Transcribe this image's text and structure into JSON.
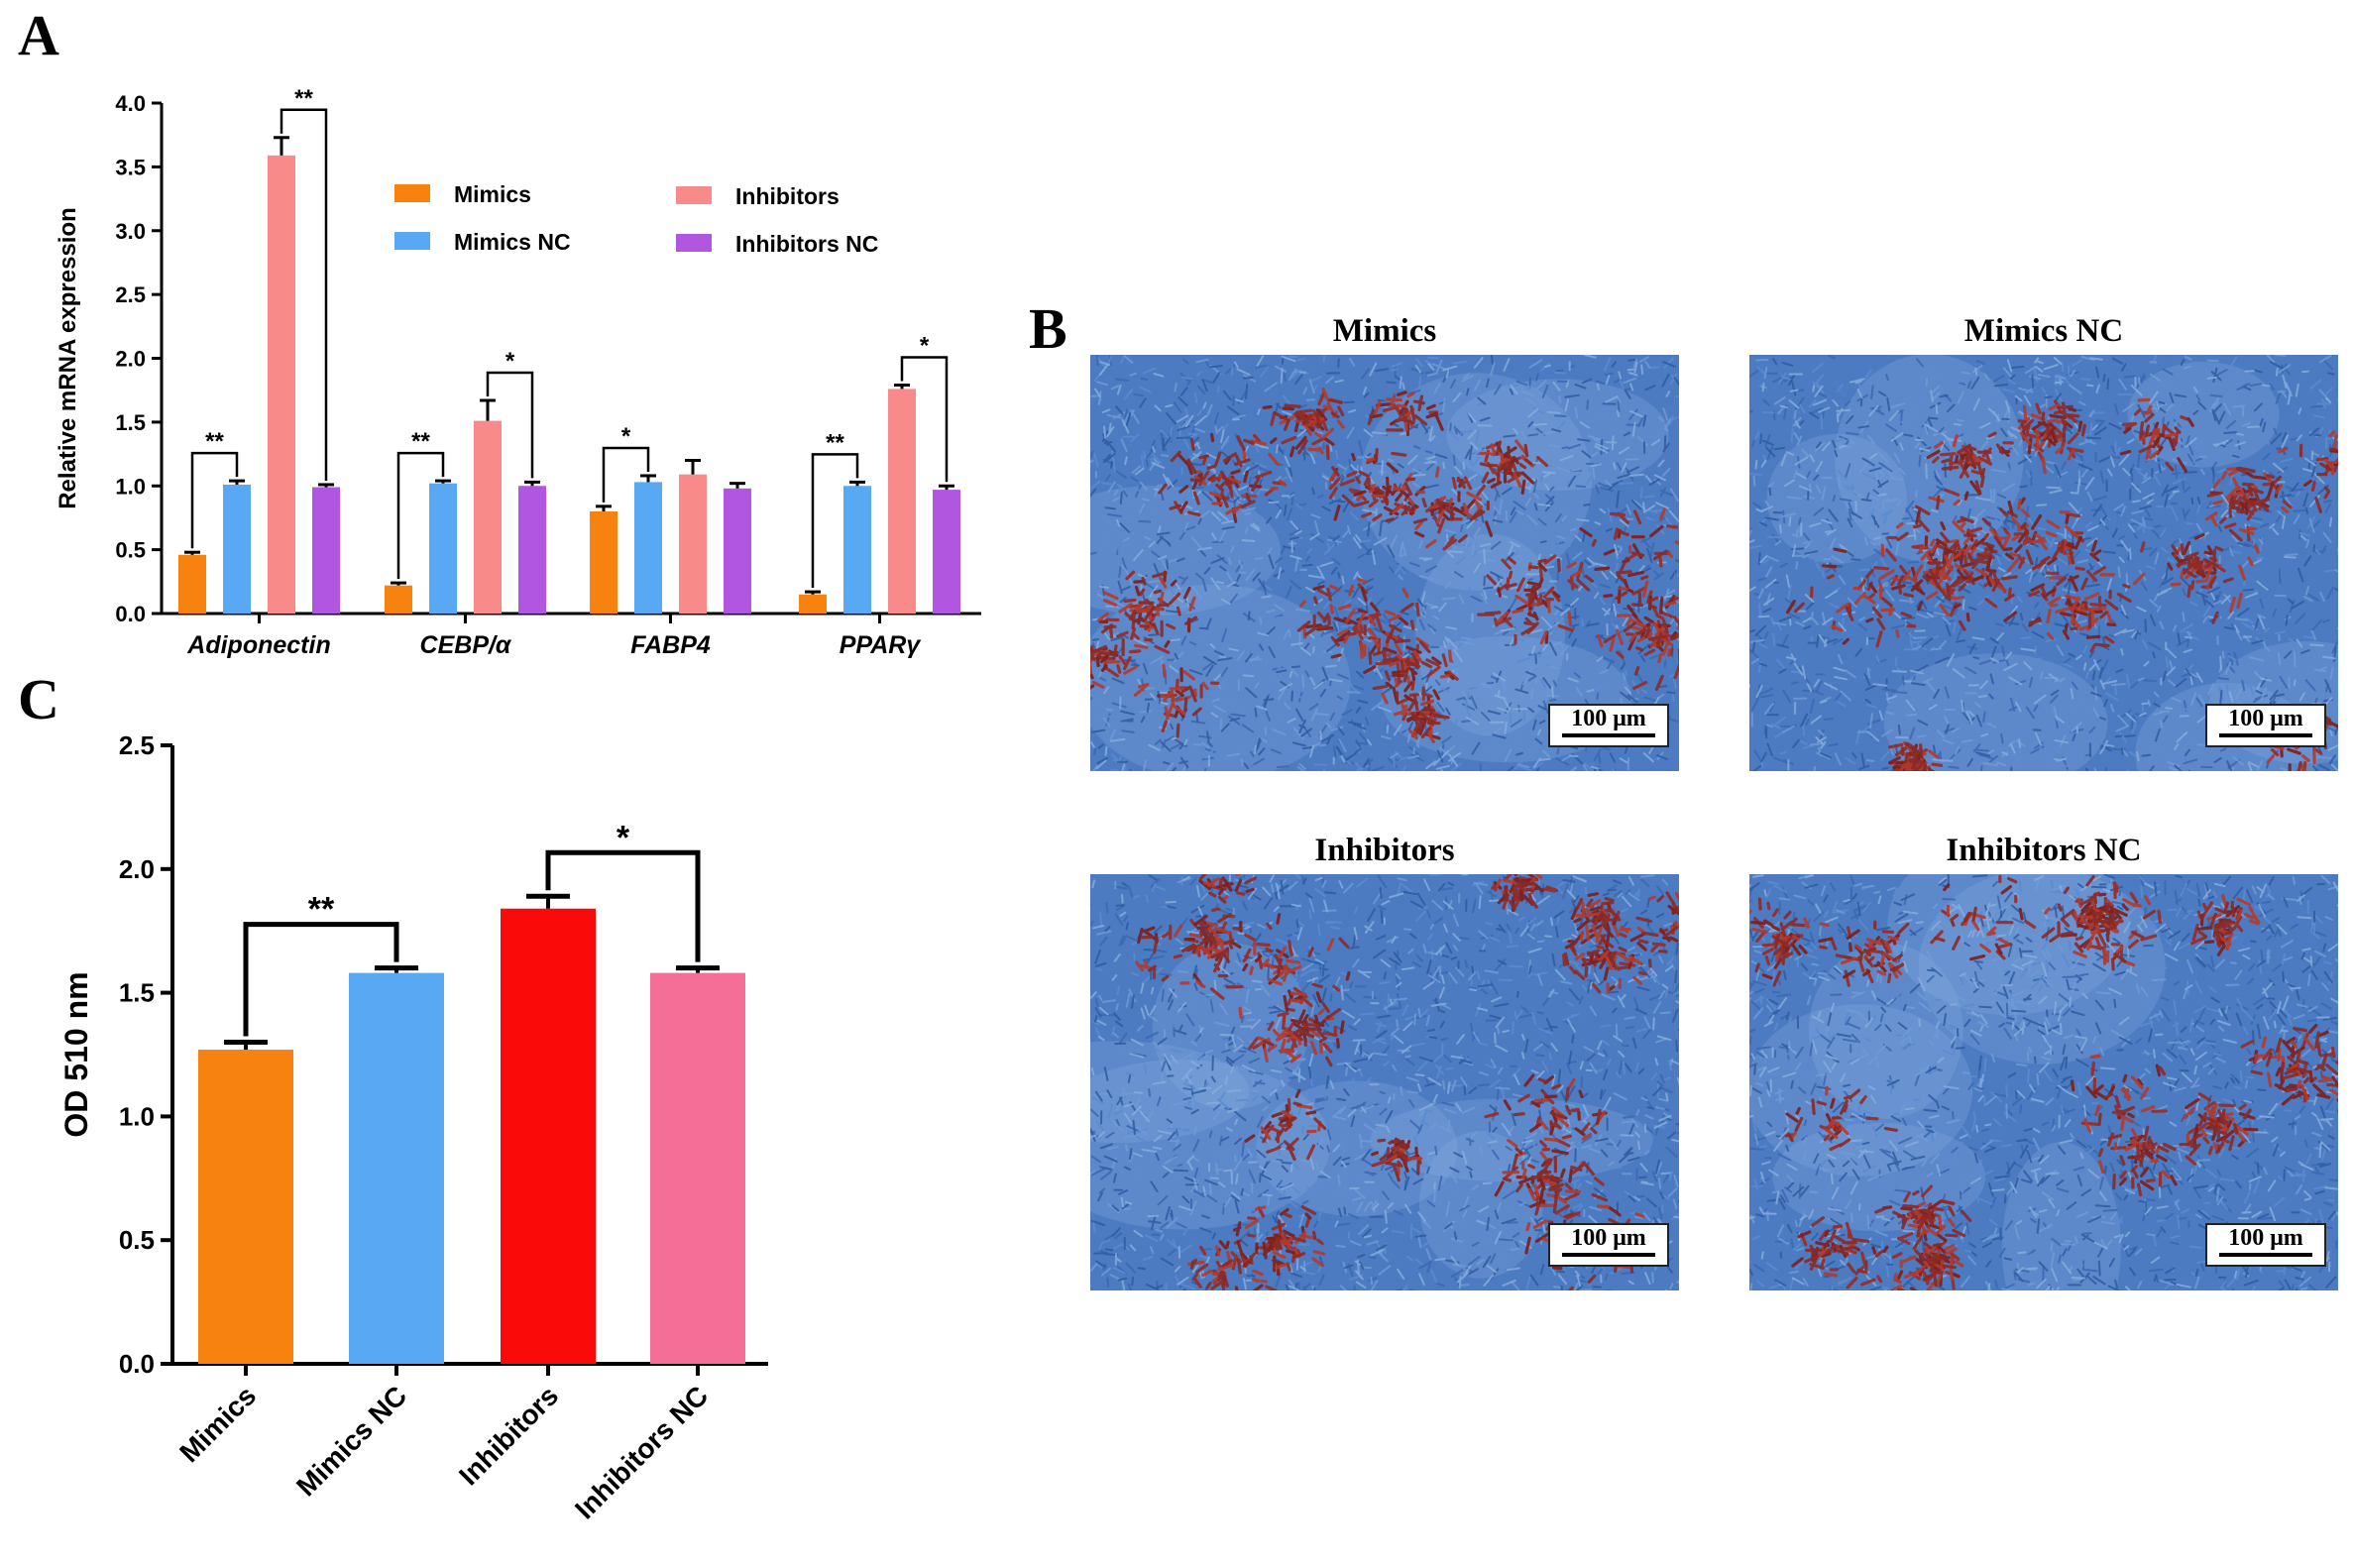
{
  "panels": {
    "A": "A",
    "B": "B",
    "C": "C"
  },
  "colors": {
    "mimics": "#f7820f",
    "mimics_nc": "#58a8f3",
    "inhibitors_a": "#f88a8a",
    "inhibitors_nc_a": "#b056e0",
    "inhibitors_c": "#fb0a0a",
    "inhibitors_nc_c": "#f56e97",
    "stain_bg": "#4c7bc2",
    "stain_red": "#9a2a22"
  },
  "chart_data": [
    {
      "id": "A",
      "type": "bar",
      "title": "",
      "xlabel": "",
      "ylabel": "Relative mRNA expression",
      "ylim": [
        0,
        4.0
      ],
      "yticks": [
        "0.0",
        "0.5",
        "1.0",
        "1.5",
        "2.0",
        "2.5",
        "3.0",
        "3.5",
        "4.0"
      ],
      "categories": [
        "Adiponectin",
        "CEBP/α",
        "FABP4",
        "PPARγ"
      ],
      "legend_position": "top-center",
      "series": [
        {
          "name": "Mimics",
          "color_key": "mimics",
          "values": [
            0.46,
            0.22,
            0.8,
            0.15
          ],
          "errors": [
            0.02,
            0.02,
            0.04,
            0.02
          ]
        },
        {
          "name": "Mimics NC",
          "color_key": "mimics_nc",
          "values": [
            1.01,
            1.02,
            1.03,
            1.0
          ],
          "errors": [
            0.03,
            0.02,
            0.05,
            0.03
          ]
        },
        {
          "name": "Inhibitors",
          "color_key": "inhibitors_a",
          "values": [
            3.59,
            1.51,
            1.09,
            1.76
          ],
          "errors": [
            0.14,
            0.16,
            0.11,
            0.03
          ]
        },
        {
          "name": "Inhibitors NC",
          "color_key": "inhibitors_nc_a",
          "values": [
            0.99,
            1.0,
            0.98,
            0.97
          ],
          "errors": [
            0.02,
            0.03,
            0.04,
            0.03
          ]
        }
      ],
      "significance": [
        {
          "category": 0,
          "from": 0,
          "to": 1,
          "label": "**"
        },
        {
          "category": 0,
          "from": 2,
          "to": 3,
          "label": "**"
        },
        {
          "category": 1,
          "from": 0,
          "to": 1,
          "label": "**"
        },
        {
          "category": 1,
          "from": 2,
          "to": 3,
          "label": "*"
        },
        {
          "category": 2,
          "from": 0,
          "to": 1,
          "label": "*"
        },
        {
          "category": 3,
          "from": 0,
          "to": 1,
          "label": "**"
        },
        {
          "category": 3,
          "from": 2,
          "to": 3,
          "label": "*"
        }
      ]
    },
    {
      "id": "C",
      "type": "bar",
      "title": "",
      "xlabel": "",
      "ylabel": "OD 510 nm",
      "ylim": [
        0,
        2.5
      ],
      "yticks": [
        "0.0",
        "0.5",
        "1.0",
        "1.5",
        "2.0",
        "2.5"
      ],
      "categories": [
        "Mimics",
        "Mimics NC",
        "Inhibitors",
        "Inhibitors NC"
      ],
      "values": [
        1.27,
        1.58,
        1.84,
        1.58
      ],
      "errors": [
        0.03,
        0.02,
        0.05,
        0.02
      ],
      "color_keys": [
        "mimics",
        "mimics_nc",
        "inhibitors_c",
        "inhibitors_nc_c"
      ],
      "significance": [
        {
          "from": 0,
          "to": 1,
          "label": "**"
        },
        {
          "from": 2,
          "to": 3,
          "label": "*"
        }
      ]
    }
  ],
  "micrographs": [
    {
      "title": "Mimics",
      "scale": "100 μm"
    },
    {
      "title": "Mimics NC",
      "scale": "100 μm"
    },
    {
      "title": "Inhibitors",
      "scale": "100 μm"
    },
    {
      "title": "Inhibitors NC",
      "scale": "100 μm"
    }
  ]
}
